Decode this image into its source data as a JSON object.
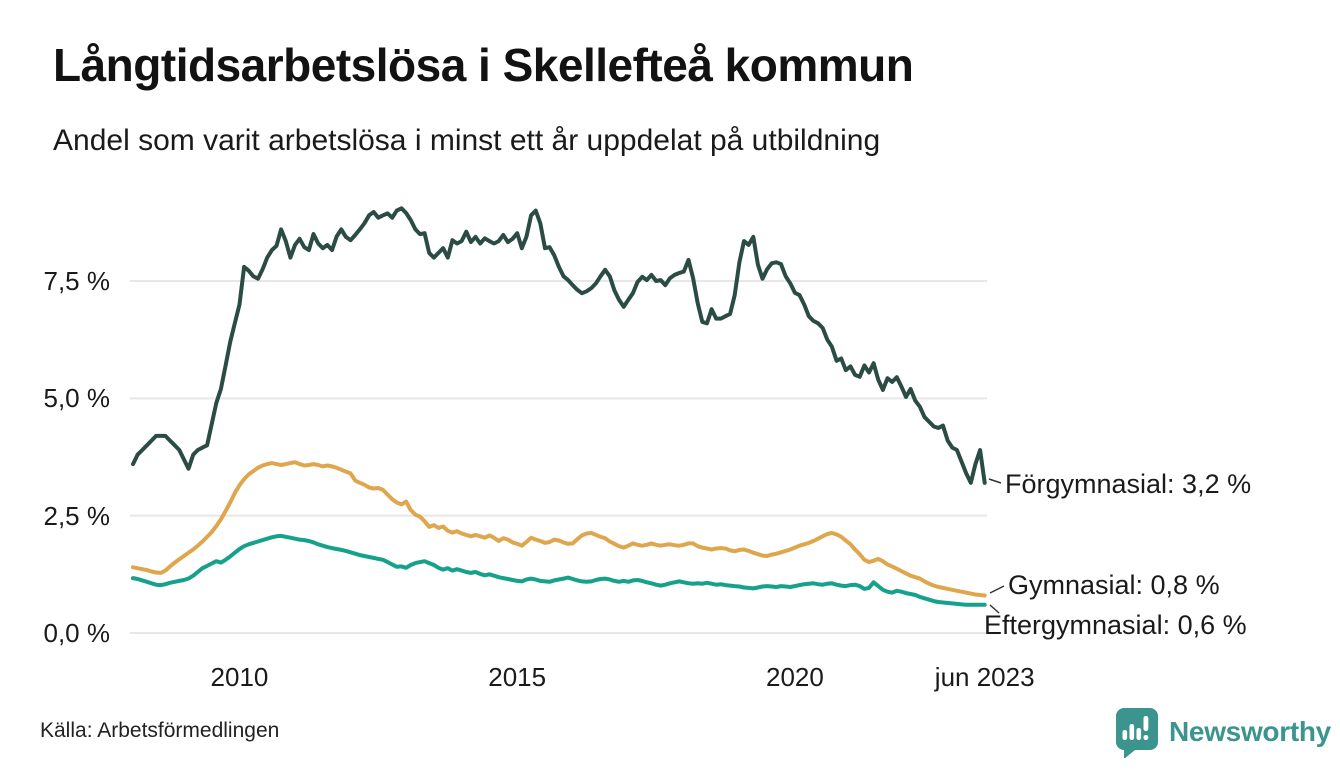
{
  "chart": {
    "title": "Långtidsarbetslösa i Skellefteå kommun",
    "subtitle": "Andel som varit arbetslösa i minst ett år uppdelat på utbildning",
    "source": "Källa: Arbetsförmedlingen",
    "brand": "Newsworthy"
  },
  "colors": {
    "forgymnasial": "#2B4C44",
    "gymnasial": "#DEA74E",
    "eftergymnasial": "#16A18C",
    "grid": "#E7E7E7",
    "text": "#1A1A1A",
    "connector": "#333333",
    "brand_teal": "#3B948E"
  },
  "chart_data": {
    "type": "line",
    "title": "Långtidsarbetslösa i Skellefteå kommun",
    "subtitle": "Andel som varit arbetslösa i minst ett år uppdelat på utbildning",
    "x_start": "2008-02",
    "x_end": "2023-06",
    "x_interval": "monthly",
    "ylim": [
      0,
      9.5
    ],
    "grid": true,
    "unit": "%",
    "yticks": [
      {
        "value": 0.0,
        "label": "0,0 %"
      },
      {
        "value": 2.5,
        "label": "2,5 %"
      },
      {
        "value": 5.0,
        "label": "5,0 %"
      },
      {
        "value": 7.5,
        "label": "7,5 %"
      }
    ],
    "xticks": [
      {
        "month_index": 23,
        "label": "2010"
      },
      {
        "month_index": 83,
        "label": "2015"
      },
      {
        "month_index": 143,
        "label": "2020"
      },
      {
        "month_index": 184,
        "label": "jun 2023"
      }
    ],
    "series": [
      {
        "name": "Förgymnasial",
        "color": "#2B4C44",
        "end_value": 3.2,
        "end_label": "Förgymnasial: 3,2 %",
        "values": [
          3.6,
          3.8,
          3.9,
          4.0,
          4.1,
          4.2,
          4.2,
          4.2,
          4.1,
          4.0,
          3.9,
          3.7,
          3.5,
          3.8,
          3.9,
          3.95,
          4.0,
          4.45,
          4.9,
          5.2,
          5.7,
          6.2,
          6.6,
          7.0,
          7.8,
          7.72,
          7.6,
          7.55,
          7.75,
          8.0,
          8.16,
          8.25,
          8.6,
          8.35,
          8.0,
          8.27,
          8.4,
          8.22,
          8.16,
          8.5,
          8.3,
          8.2,
          8.27,
          8.16,
          8.45,
          8.6,
          8.44,
          8.37,
          8.48,
          8.6,
          8.73,
          8.9,
          8.97,
          8.85,
          8.9,
          8.94,
          8.85,
          9.0,
          9.05,
          8.95,
          8.8,
          8.6,
          8.5,
          8.52,
          8.1,
          8.0,
          8.1,
          8.2,
          8.0,
          8.37,
          8.3,
          8.35,
          8.55,
          8.33,
          8.44,
          8.3,
          8.41,
          8.35,
          8.3,
          8.35,
          8.48,
          8.33,
          8.4,
          8.52,
          8.2,
          8.44,
          8.9,
          9.0,
          8.73,
          8.2,
          8.22,
          8.05,
          7.8,
          7.6,
          7.52,
          7.41,
          7.31,
          7.24,
          7.28,
          7.35,
          7.45,
          7.6,
          7.74,
          7.6,
          7.3,
          7.1,
          6.95,
          7.1,
          7.24,
          7.48,
          7.59,
          7.52,
          7.63,
          7.5,
          7.52,
          7.41,
          7.56,
          7.63,
          7.67,
          7.7,
          7.95,
          7.56,
          7.03,
          6.63,
          6.6,
          6.9,
          6.7,
          6.7,
          6.75,
          6.8,
          7.2,
          7.9,
          8.35,
          8.27,
          8.44,
          7.85,
          7.55,
          7.75,
          7.88,
          7.9,
          7.86,
          7.6,
          7.45,
          7.25,
          7.2,
          7.0,
          6.75,
          6.65,
          6.6,
          6.5,
          6.25,
          6.1,
          5.8,
          5.85,
          5.6,
          5.68,
          5.5,
          5.46,
          5.7,
          5.55,
          5.75,
          5.4,
          5.18,
          5.43,
          5.35,
          5.45,
          5.25,
          5.03,
          5.2,
          4.95,
          4.82,
          4.6,
          4.5,
          4.4,
          4.37,
          4.42,
          4.1,
          3.95,
          3.9,
          3.65,
          3.4,
          3.2,
          3.6,
          3.9,
          3.2
        ]
      },
      {
        "name": "Gymnasial",
        "color": "#DEA74E",
        "end_value": 0.8,
        "end_label": "Gymnasial: 0,8 %",
        "values": [
          1.4,
          1.38,
          1.36,
          1.34,
          1.31,
          1.29,
          1.28,
          1.33,
          1.42,
          1.5,
          1.57,
          1.64,
          1.71,
          1.78,
          1.86,
          1.95,
          2.05,
          2.15,
          2.28,
          2.42,
          2.6,
          2.78,
          2.98,
          3.15,
          3.28,
          3.38,
          3.45,
          3.52,
          3.57,
          3.6,
          3.62,
          3.6,
          3.58,
          3.6,
          3.62,
          3.64,
          3.6,
          3.57,
          3.58,
          3.6,
          3.58,
          3.55,
          3.57,
          3.55,
          3.52,
          3.48,
          3.44,
          3.4,
          3.25,
          3.2,
          3.16,
          3.1,
          3.08,
          3.09,
          3.05,
          2.95,
          2.85,
          2.78,
          2.74,
          2.8,
          2.62,
          2.52,
          2.48,
          2.38,
          2.26,
          2.3,
          2.24,
          2.27,
          2.18,
          2.14,
          2.17,
          2.12,
          2.09,
          2.06,
          2.09,
          2.06,
          2.03,
          2.08,
          2.03,
          1.96,
          2.02,
          1.99,
          1.93,
          1.9,
          1.86,
          1.94,
          2.03,
          1.99,
          1.96,
          1.92,
          1.94,
          1.99,
          1.97,
          1.93,
          1.9,
          1.91,
          2.0,
          2.08,
          2.12,
          2.13,
          2.09,
          2.05,
          2.02,
          1.95,
          1.9,
          1.85,
          1.82,
          1.86,
          1.91,
          1.88,
          1.86,
          1.88,
          1.91,
          1.88,
          1.86,
          1.88,
          1.89,
          1.87,
          1.86,
          1.88,
          1.91,
          1.91,
          1.85,
          1.82,
          1.8,
          1.78,
          1.8,
          1.81,
          1.8,
          1.76,
          1.74,
          1.77,
          1.78,
          1.75,
          1.71,
          1.68,
          1.65,
          1.64,
          1.67,
          1.69,
          1.72,
          1.75,
          1.78,
          1.82,
          1.86,
          1.89,
          1.92,
          1.96,
          2.01,
          2.06,
          2.11,
          2.13,
          2.1,
          2.05,
          1.97,
          1.89,
          1.78,
          1.68,
          1.56,
          1.51,
          1.54,
          1.58,
          1.53,
          1.46,
          1.42,
          1.37,
          1.32,
          1.27,
          1.22,
          1.19,
          1.16,
          1.1,
          1.05,
          1.01,
          0.98,
          0.96,
          0.94,
          0.92,
          0.9,
          0.88,
          0.86,
          0.84,
          0.82,
          0.81,
          0.8
        ]
      },
      {
        "name": "Eftergymnasial",
        "color": "#16A18C",
        "end_value": 0.6,
        "end_label": "Eftergymnasial: 0,6 %",
        "values": [
          1.17,
          1.15,
          1.12,
          1.09,
          1.06,
          1.03,
          1.02,
          1.04,
          1.07,
          1.09,
          1.11,
          1.13,
          1.16,
          1.22,
          1.3,
          1.38,
          1.43,
          1.48,
          1.53,
          1.5,
          1.56,
          1.63,
          1.71,
          1.79,
          1.85,
          1.89,
          1.92,
          1.95,
          1.98,
          2.01,
          2.04,
          2.06,
          2.07,
          2.05,
          2.03,
          2.01,
          1.99,
          1.98,
          1.96,
          1.93,
          1.89,
          1.86,
          1.83,
          1.81,
          1.79,
          1.77,
          1.75,
          1.72,
          1.69,
          1.66,
          1.64,
          1.62,
          1.6,
          1.58,
          1.56,
          1.51,
          1.46,
          1.41,
          1.42,
          1.39,
          1.45,
          1.49,
          1.51,
          1.53,
          1.49,
          1.45,
          1.39,
          1.35,
          1.38,
          1.33,
          1.36,
          1.33,
          1.3,
          1.28,
          1.3,
          1.26,
          1.23,
          1.25,
          1.22,
          1.19,
          1.17,
          1.15,
          1.13,
          1.11,
          1.1,
          1.14,
          1.16,
          1.14,
          1.11,
          1.1,
          1.09,
          1.12,
          1.14,
          1.16,
          1.18,
          1.15,
          1.12,
          1.1,
          1.09,
          1.1,
          1.13,
          1.15,
          1.16,
          1.14,
          1.11,
          1.09,
          1.11,
          1.09,
          1.12,
          1.13,
          1.11,
          1.08,
          1.06,
          1.03,
          1.01,
          1.03,
          1.06,
          1.08,
          1.1,
          1.08,
          1.06,
          1.05,
          1.06,
          1.05,
          1.07,
          1.05,
          1.03,
          1.04,
          1.02,
          1.01,
          1.0,
          0.99,
          0.97,
          0.96,
          0.95,
          0.97,
          0.99,
          1.0,
          0.99,
          0.98,
          1.0,
          0.99,
          0.98,
          1.0,
          1.02,
          1.04,
          1.05,
          1.06,
          1.04,
          1.03,
          1.05,
          1.06,
          1.03,
          1.01,
          1.0,
          1.02,
          1.03,
          1.0,
          0.94,
          0.96,
          1.08,
          1.0,
          0.92,
          0.88,
          0.86,
          0.9,
          0.88,
          0.85,
          0.83,
          0.81,
          0.77,
          0.74,
          0.71,
          0.68,
          0.66,
          0.65,
          0.64,
          0.63,
          0.62,
          0.61,
          0.6,
          0.6,
          0.6,
          0.6,
          0.6
        ]
      }
    ],
    "legend_position": "end-of-line annotations (right side)"
  }
}
